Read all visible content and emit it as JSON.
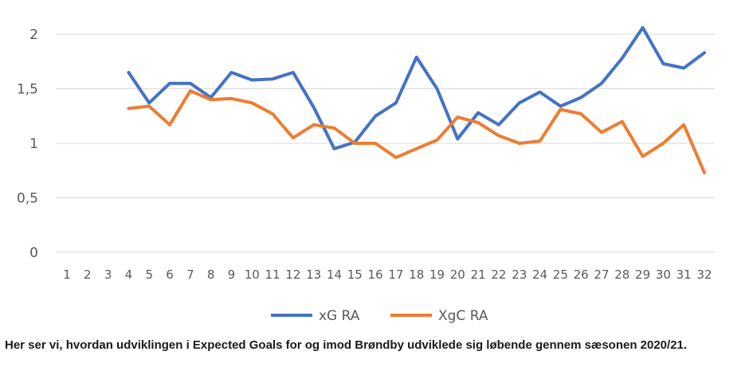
{
  "chart_data": {
    "type": "line",
    "categories": [
      "1",
      "2",
      "3",
      "4",
      "5",
      "6",
      "7",
      "8",
      "9",
      "10",
      "11",
      "12",
      "13",
      "14",
      "15",
      "16",
      "17",
      "18",
      "19",
      "20",
      "21",
      "22",
      "23",
      "24",
      "25",
      "26",
      "27",
      "28",
      "29",
      "30",
      "31",
      "32"
    ],
    "ylim": [
      0,
      2
    ],
    "yticks": [
      "0",
      "0,5",
      "1",
      "1,5",
      "2"
    ],
    "grid": true,
    "legend_position": "bottom",
    "series": [
      {
        "name": "xG RA",
        "color": "#4472C4",
        "values": [
          null,
          null,
          null,
          1.65,
          1.37,
          1.55,
          1.55,
          1.42,
          1.65,
          1.58,
          1.59,
          1.65,
          1.33,
          0.95,
          1.01,
          1.25,
          1.37,
          1.79,
          1.5,
          1.04,
          1.28,
          1.17,
          1.37,
          1.47,
          1.34,
          1.42,
          1.55,
          1.78,
          2.06,
          1.73,
          1.69,
          1.83
        ]
      },
      {
        "name": "XgC RA",
        "color": "#ED7D31",
        "values": [
          null,
          null,
          null,
          1.32,
          1.34,
          1.17,
          1.48,
          1.4,
          1.41,
          1.37,
          1.27,
          1.05,
          1.17,
          1.14,
          1.0,
          1.0,
          0.87,
          0.95,
          1.03,
          1.24,
          1.19,
          1.07,
          1.0,
          1.02,
          1.31,
          1.27,
          1.1,
          1.2,
          0.88,
          1.0,
          1.17,
          0.73
        ]
      }
    ]
  },
  "caption": "Her ser vi, hvordan udviklingen i Expected Goals for og imod Brøndby udviklede sig løbende gennem sæsonen 2020/21."
}
